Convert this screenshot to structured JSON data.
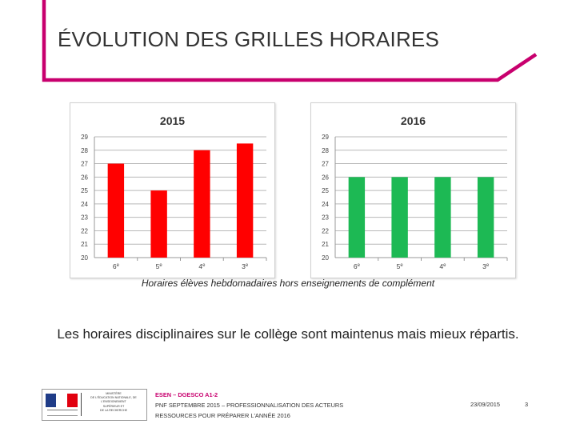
{
  "slide": {
    "title": "ÉVOLUTION DES GRILLES HORAIRES",
    "caption": "Horaires élèves hebdomadaires hors enseignements de complément",
    "statement": "Les horaires disciplinaires sur le collège sont maintenus mais mieux répartis."
  },
  "footer": {
    "org": "ESEN – DGESCO A1-2",
    "line1": "PNF SEPTEMBRE 2015 – PROFESSIONNALISATION DES ACTEURS",
    "line2": "RESSOURCES POUR PRÉPARER L'ANNÉE 2016",
    "date": "23/09/2015",
    "page": "3",
    "logo_text": "MINISTÈRE\nDE L'ÉDUCATION NATIONALE, DE L'ENSEIGNEMENT\nSUPÉRIEUR ET\nDE LA RECHERCHE"
  },
  "colors": {
    "accent": "#c8006e",
    "bar_2015": "#ff0000",
    "bar_2016": "#1db954",
    "flag_blue": "#1f3c88",
    "flag_white": "#ffffff",
    "flag_red": "#e1000f"
  },
  "chart_data": [
    {
      "type": "bar",
      "title": "2015",
      "categories": [
        "6e",
        "5e",
        "4e",
        "3e"
      ],
      "values": [
        27,
        25,
        28,
        28.5
      ],
      "ylim": [
        20,
        29
      ],
      "yticks": [
        "20",
        "21",
        "22",
        "23",
        "24",
        "25",
        "26",
        "27",
        "28",
        "29"
      ],
      "grid": true,
      "color": "#ff0000"
    },
    {
      "type": "bar",
      "title": "2016",
      "categories": [
        "6e",
        "5e",
        "4e",
        "3e"
      ],
      "values": [
        26,
        26,
        26,
        26
      ],
      "ylim": [
        20,
        29
      ],
      "yticks": [
        "20",
        "21",
        "22",
        "23",
        "24",
        "25",
        "26",
        "27",
        "28",
        "29"
      ],
      "grid": true,
      "color": "#1db954"
    }
  ]
}
